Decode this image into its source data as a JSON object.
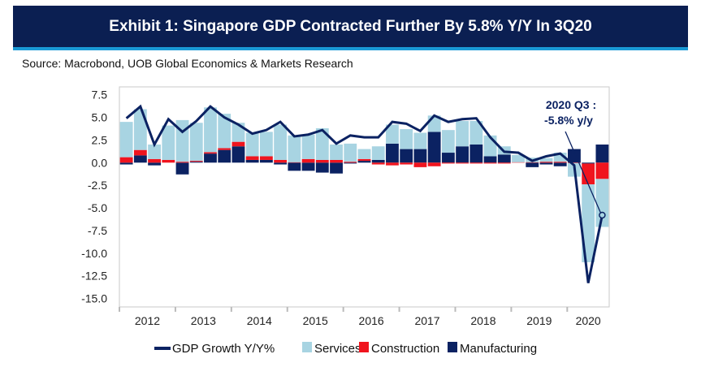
{
  "header": {
    "title": "Exhibit 1: Singapore GDP Contracted Further By 5.8% Y/Y In 3Q20",
    "source": "Source: Macrobond, UOB Global Economics & Markets Research"
  },
  "chart_data": {
    "type": "bar",
    "stacked": true,
    "title": "Exhibit 1: Singapore GDP Contracted Further By 5.8% Y/Y In 3Q20",
    "xlabel": "",
    "ylabel": "",
    "ylim": [
      -15,
      7.5
    ],
    "yticks": [
      "7.5",
      "5.0",
      "2.5",
      "0.0",
      "-2.5",
      "-5.0",
      "-7.5",
      "-10.0",
      "-12.5",
      "-15.0"
    ],
    "year_labels": [
      "2012",
      "2013",
      "2014",
      "2015",
      "2016",
      "2017",
      "2018",
      "2019",
      "2020"
    ],
    "categories": [
      "2012Q1",
      "2012Q2",
      "2012Q3",
      "2012Q4",
      "2013Q1",
      "2013Q2",
      "2013Q3",
      "2013Q4",
      "2014Q1",
      "2014Q2",
      "2014Q3",
      "2014Q4",
      "2015Q1",
      "2015Q2",
      "2015Q3",
      "2015Q4",
      "2016Q1",
      "2016Q2",
      "2016Q3",
      "2016Q4",
      "2017Q1",
      "2017Q2",
      "2017Q3",
      "2017Q4",
      "2018Q1",
      "2018Q2",
      "2018Q3",
      "2018Q4",
      "2019Q1",
      "2019Q2",
      "2019Q3",
      "2019Q4",
      "2020Q1",
      "2020Q2",
      "2020Q3"
    ],
    "series": [
      {
        "name": "Manufacturing",
        "kind": "bar",
        "color": "#0b2262",
        "values": [
          -0.2,
          0.8,
          -0.3,
          0,
          -1.3,
          0.1,
          1.0,
          1.4,
          1.8,
          0.3,
          0.3,
          -0.2,
          -0.9,
          -0.9,
          -1.1,
          -1.2,
          -0.1,
          0.2,
          0.3,
          2.1,
          1.5,
          1.5,
          3.4,
          1.1,
          1.8,
          2.0,
          0.7,
          0.9,
          0,
          -0.5,
          -0.2,
          -0.4,
          1.5,
          -0.1,
          2.0
        ]
      },
      {
        "name": "Construction",
        "kind": "bar",
        "color": "#f0141e",
        "values": [
          0.6,
          0.6,
          0.4,
          0.3,
          0.1,
          0.1,
          0.15,
          0.2,
          0.5,
          0.4,
          0.4,
          0.3,
          0.05,
          0.4,
          0.3,
          0.3,
          0.1,
          0.2,
          -0.2,
          -0.3,
          -0.2,
          -0.5,
          -0.4,
          -0.1,
          -0.1,
          -0.1,
          -0.1,
          -0.1,
          0.05,
          0.05,
          0.1,
          0.1,
          -0.05,
          -2.3,
          -1.8
        ]
      },
      {
        "name": "Services",
        "kind": "bar",
        "color": "#a8d4e2",
        "values": [
          3.9,
          4.5,
          1.6,
          3.8,
          4.6,
          4.2,
          4.95,
          3.8,
          2.1,
          2.6,
          2.7,
          3.9,
          2.95,
          2.7,
          3.5,
          1.7,
          2.0,
          1.1,
          1.5,
          2.1,
          2.2,
          1.8,
          1.8,
          2.5,
          2.8,
          2.6,
          2.3,
          0.9,
          0.8,
          0.5,
          0.4,
          1.0,
          -1.5,
          -8.6,
          -5.3
        ]
      },
      {
        "name": "GDP Growth Y/Y%",
        "kind": "line",
        "color": "#0b2262",
        "values": [
          4.9,
          6.2,
          2.0,
          4.8,
          3.4,
          4.6,
          6.2,
          5.0,
          4.2,
          3.2,
          3.6,
          4.5,
          2.9,
          3.1,
          3.6,
          2.1,
          3.0,
          2.8,
          2.8,
          4.5,
          4.3,
          3.5,
          5.2,
          4.5,
          4.8,
          4.9,
          2.8,
          1.2,
          1.1,
          0.2,
          0.7,
          1.0,
          -0.3,
          -13.3,
          -5.8
        ]
      }
    ],
    "legend_position": "bottom",
    "legend": [
      "GDP Growth Y/Y%",
      "Services",
      "Construction",
      "Manufacturing"
    ],
    "annotation": {
      "line1": "2020 Q3 :",
      "line2": "-5.8% y/y",
      "target": "2020Q3"
    }
  }
}
